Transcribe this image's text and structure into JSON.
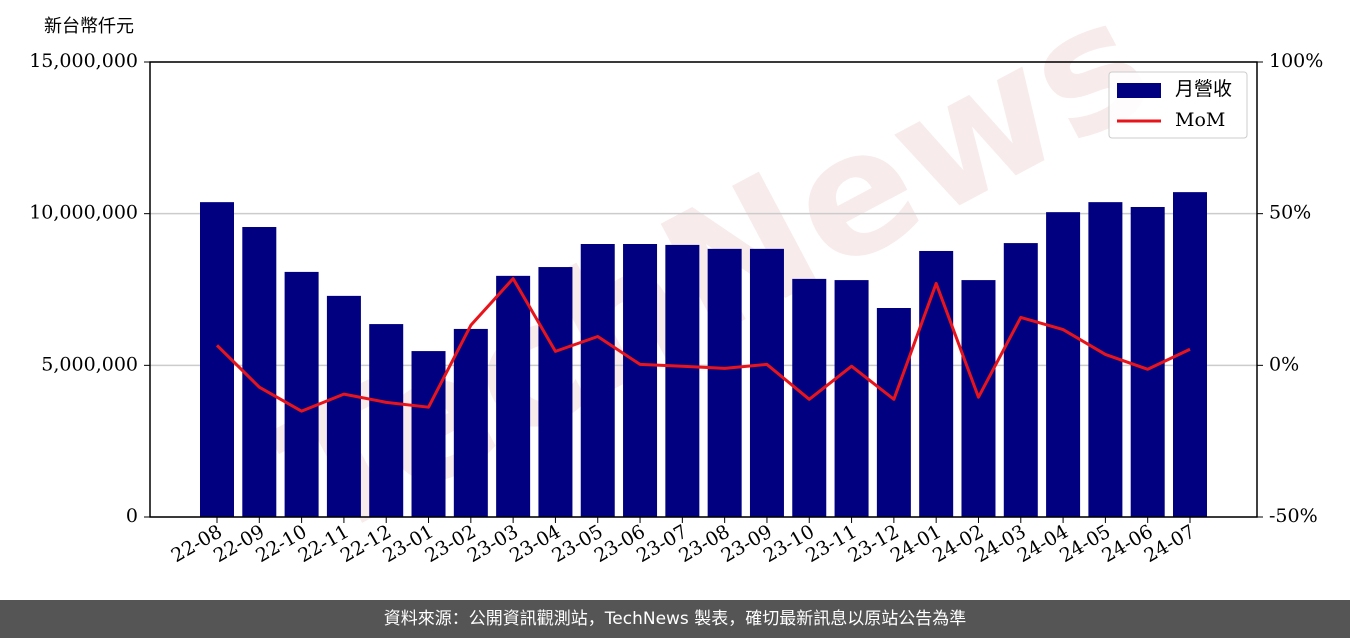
{
  "chart_data": {
    "type": "bar",
    "ylabel": "新台幣仟元",
    "watermark": "TechNews",
    "categories": [
      "22-08",
      "22-09",
      "22-10",
      "22-11",
      "22-12",
      "23-01",
      "23-02",
      "23-03",
      "23-04",
      "23-05",
      "23-06",
      "23-07",
      "23-08",
      "23-09",
      "23-10",
      "23-11",
      "23-12",
      "24-01",
      "24-02",
      "24-03",
      "24-04",
      "24-05",
      "24-06",
      "24-07"
    ],
    "series": [
      {
        "name": "月營收",
        "type": "bar",
        "color": "#000080",
        "values": [
          10380000,
          9560000,
          8080000,
          7290000,
          6360000,
          5470000,
          6200000,
          7950000,
          8240000,
          9000000,
          9000000,
          8970000,
          8840000,
          8840000,
          7850000,
          7810000,
          6890000,
          8770000,
          7810000,
          9030000,
          10050000,
          10380000,
          10220000,
          10710000
        ]
      },
      {
        "name": "MoM",
        "type": "line",
        "axis": "y2",
        "color": "#e8141b",
        "values": [
          6.6,
          -7.2,
          -15.1,
          -9.5,
          -12.2,
          -13.8,
          13.2,
          28.6,
          4.6,
          9.5,
          0.3,
          -0.3,
          -1.0,
          0.3,
          -11.2,
          -0.3,
          -11.2,
          27.0,
          -10.5,
          15.8,
          11.8,
          3.6,
          -1.3,
          5.3
        ]
      }
    ],
    "ylim": [
      0,
      15000000
    ],
    "yticks": [
      0,
      {
        "value": 5000000,
        "label": "5,000,000"
      },
      {
        "value": 10000000,
        "label": "10,000,000"
      },
      {
        "value": 15000000,
        "label": "15,000,000"
      }
    ],
    "y2lim": [
      -50,
      100
    ],
    "y2ticks": [
      {
        "value": -50,
        "label": "-50%"
      },
      {
        "value": 0,
        "label": "0%"
      },
      {
        "value": 50,
        "label": "50%"
      },
      {
        "value": 100,
        "label": "100%"
      }
    ],
    "grid": true,
    "legend": "upper right"
  },
  "footer": "資料來源：公開資訊觀測站，TechNews 製表，確切最新訊息以原站公告為準"
}
